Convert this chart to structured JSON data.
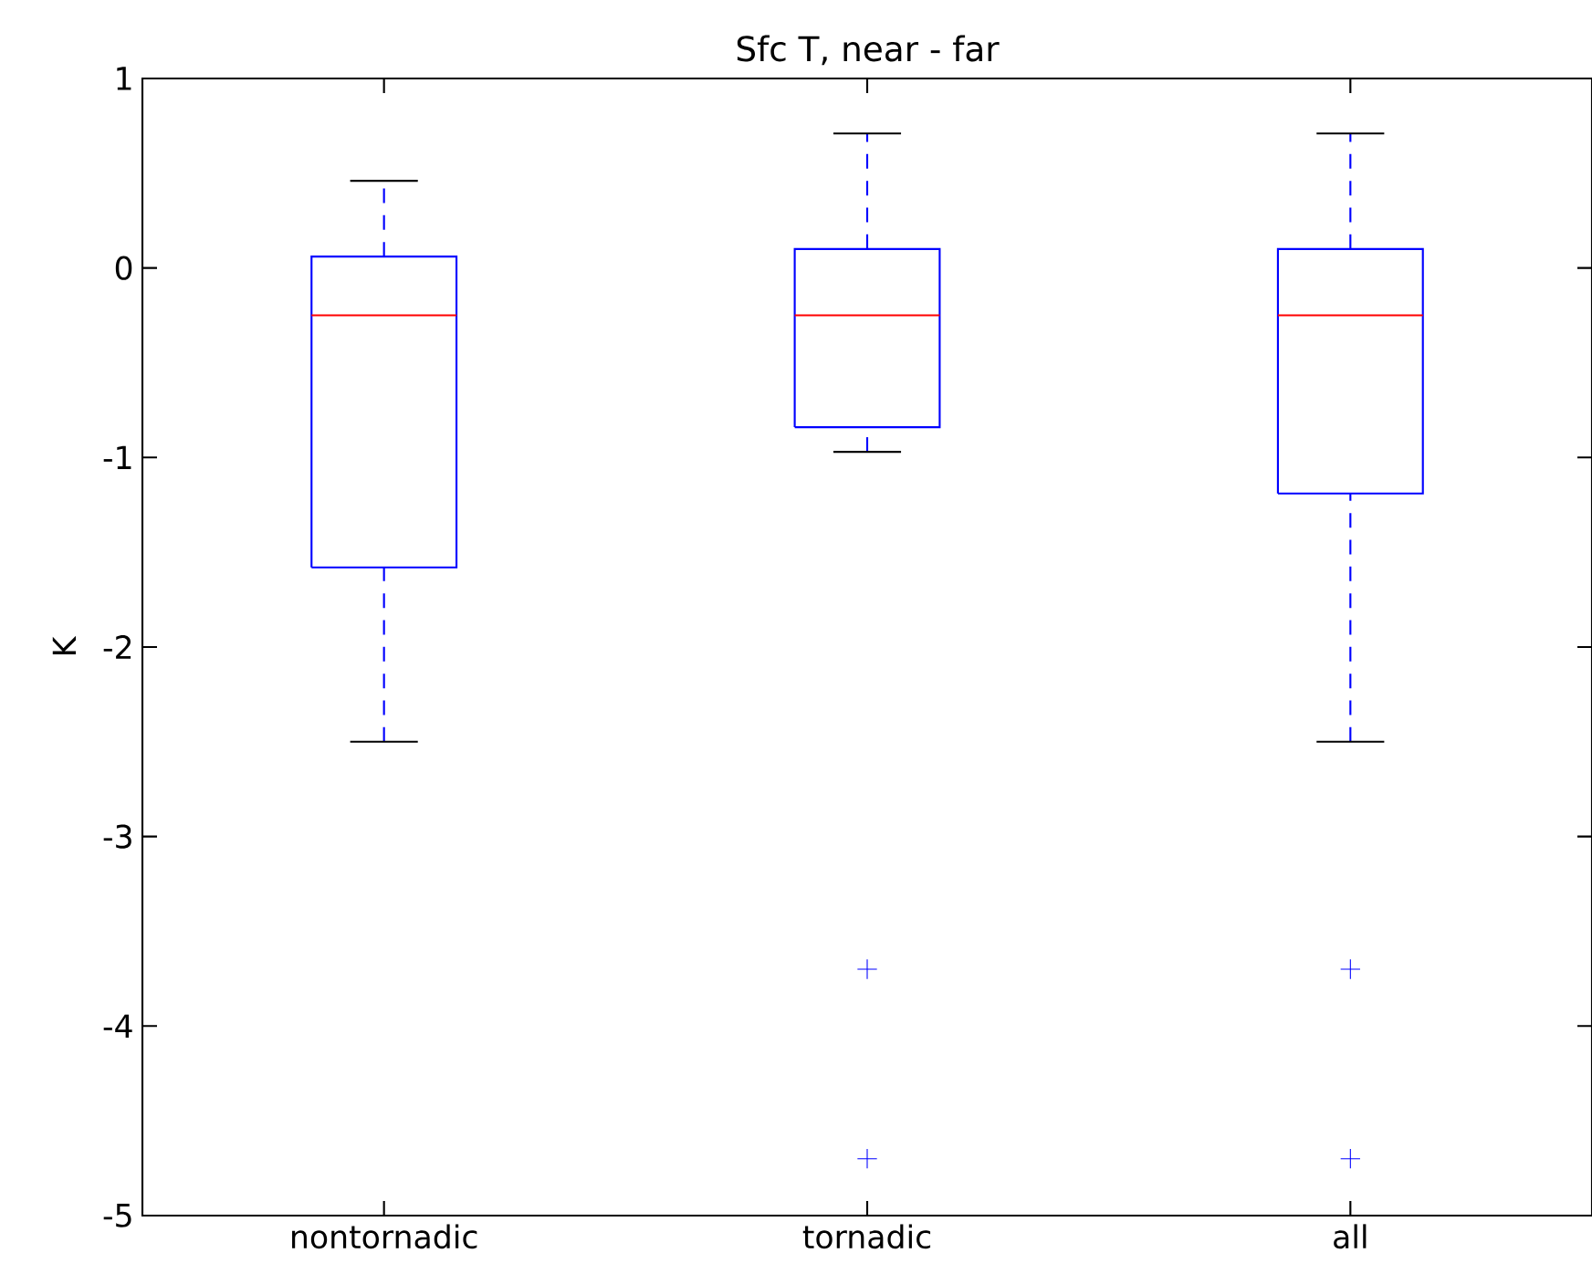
{
  "chart_data": {
    "type": "box",
    "title": "Sfc T, near - far",
    "ylabel": "K",
    "categories": [
      "nontornadic",
      "tornadic",
      "all"
    ],
    "ylim": [
      -5,
      1
    ],
    "yticks": [
      -5,
      -4,
      -3,
      -2,
      -1,
      0,
      1
    ],
    "series": [
      {
        "color": "#0000ff",
        "boxes": [
          {
            "low": -2.5,
            "q1": -1.58,
            "median": -0.25,
            "q3": 0.06,
            "high": 0.46
          },
          {
            "low": -0.97,
            "q1": -0.84,
            "median": -0.25,
            "q3": 0.1,
            "high": 0.71,
            "outliers": [
              -3.7,
              -4.7
            ]
          },
          {
            "low": -2.5,
            "q1": -1.19,
            "median": -0.25,
            "q3": 0.1,
            "high": 0.71,
            "outliers": [
              -3.7,
              -4.7
            ]
          }
        ]
      }
    ]
  }
}
